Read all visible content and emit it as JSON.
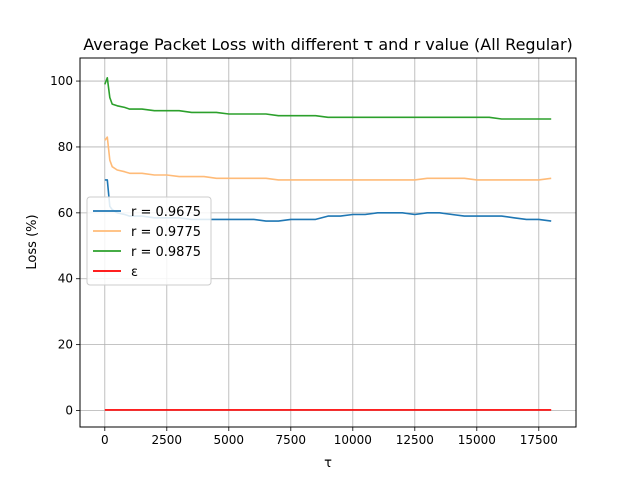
{
  "chart_data": {
    "type": "line",
    "title": "Average Packet Loss with different τ and r value (All Regular)",
    "xlabel": "τ",
    "ylabel": "Loss (%)",
    "xlim": [
      -1000,
      19000
    ],
    "ylim": [
      -5,
      107
    ],
    "xticks": [
      0,
      2500,
      5000,
      7500,
      10000,
      12500,
      15000,
      17500
    ],
    "xtick_labels": [
      "0",
      "2500",
      "5000",
      "7500",
      "10000",
      "12500",
      "15000",
      "17500"
    ],
    "yticks": [
      0,
      20,
      40,
      60,
      80,
      100
    ],
    "ytick_labels": [
      "0",
      "20",
      "40",
      "60",
      "80",
      "100"
    ],
    "grid": true,
    "legend_position": "center-left",
    "series": [
      {
        "name": "r = 0.9675",
        "color": "#1f77b4",
        "x": [
          0,
          100,
          200,
          300,
          500,
          800,
          1000,
          1500,
          2000,
          2500,
          3000,
          3500,
          4000,
          4500,
          5000,
          5500,
          6000,
          6500,
          7000,
          7500,
          8000,
          8500,
          9000,
          9500,
          10000,
          10500,
          11000,
          11500,
          12000,
          12500,
          13000,
          13500,
          14000,
          14500,
          15000,
          15500,
          16000,
          16500,
          17000,
          17500,
          18000
        ],
        "y": [
          70,
          70,
          62,
          61,
          60,
          59.5,
          59,
          59,
          58.5,
          58.5,
          58.5,
          58,
          58,
          58,
          58,
          58,
          58,
          57.5,
          57.5,
          58,
          58,
          58,
          59,
          59,
          59.5,
          59.5,
          60,
          60,
          60,
          59.5,
          60,
          60,
          59.5,
          59,
          59,
          59,
          59,
          58.5,
          58,
          58,
          57.5
        ]
      },
      {
        "name": "r = 0.9775",
        "color": "#ffbb78",
        "x": [
          0,
          100,
          200,
          300,
          500,
          800,
          1000,
          1500,
          2000,
          2500,
          3000,
          3500,
          4000,
          4500,
          5000,
          5500,
          6000,
          6500,
          7000,
          7500,
          8000,
          8500,
          9000,
          9500,
          10000,
          10500,
          11000,
          11500,
          12000,
          12500,
          13000,
          13500,
          14000,
          14500,
          15000,
          15500,
          16000,
          16500,
          17000,
          17500,
          18000
        ],
        "y": [
          82,
          83,
          76,
          74,
          73,
          72.5,
          72,
          72,
          71.5,
          71.5,
          71,
          71,
          71,
          70.5,
          70.5,
          70.5,
          70.5,
          70.5,
          70,
          70,
          70,
          70,
          70,
          70,
          70,
          70,
          70,
          70,
          70,
          70,
          70.5,
          70.5,
          70.5,
          70.5,
          70,
          70,
          70,
          70,
          70,
          70,
          70.5
        ]
      },
      {
        "name": "r = 0.9875",
        "color": "#2ca02c",
        "x": [
          0,
          100,
          200,
          300,
          500,
          800,
          1000,
          1500,
          2000,
          2500,
          3000,
          3500,
          4000,
          4500,
          5000,
          5500,
          6000,
          6500,
          7000,
          7500,
          8000,
          8500,
          9000,
          9500,
          10000,
          10500,
          11000,
          11500,
          12000,
          12500,
          13000,
          13500,
          14000,
          14500,
          15000,
          15500,
          16000,
          16500,
          17000,
          17500,
          18000
        ],
        "y": [
          99,
          101,
          95,
          93,
          92.5,
          92,
          91.5,
          91.5,
          91,
          91,
          91,
          90.5,
          90.5,
          90.5,
          90,
          90,
          90,
          90,
          89.5,
          89.5,
          89.5,
          89.5,
          89,
          89,
          89,
          89,
          89,
          89,
          89,
          89,
          89,
          89,
          89,
          89,
          89,
          89,
          88.5,
          88.5,
          88.5,
          88.5,
          88.5
        ]
      },
      {
        "name": "ε",
        "color": "#ff0000",
        "x": [
          0,
          18000
        ],
        "y": [
          0.2,
          0.2
        ]
      }
    ]
  }
}
